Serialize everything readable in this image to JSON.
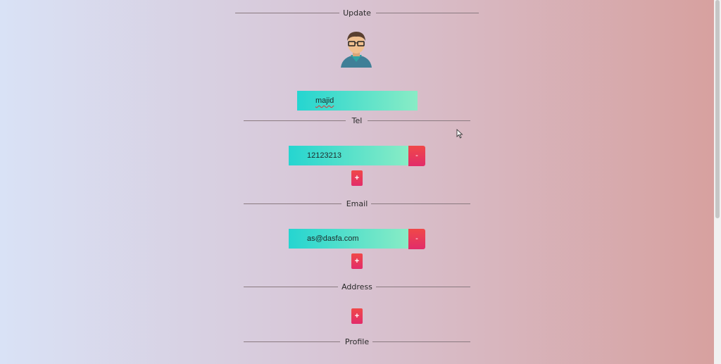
{
  "sections": {
    "update": "Update",
    "tel": "Tel",
    "email": "Email",
    "address": "Address",
    "profile": "Profile"
  },
  "name": {
    "value": "majid"
  },
  "tel": {
    "value": "12123213",
    "remove_label": "-",
    "add_label": "+"
  },
  "email": {
    "value": "as@dasfa.com",
    "remove_label": "-",
    "add_label": "+"
  },
  "address": {
    "add_label": "+"
  },
  "colors": {
    "button": "#ea3a5a",
    "field_start": "#25d5d0",
    "field_end": "#89ecc5"
  },
  "icons": {
    "avatar": "man-with-glasses-avatar",
    "cursor": "mouse-pointer-icon"
  }
}
